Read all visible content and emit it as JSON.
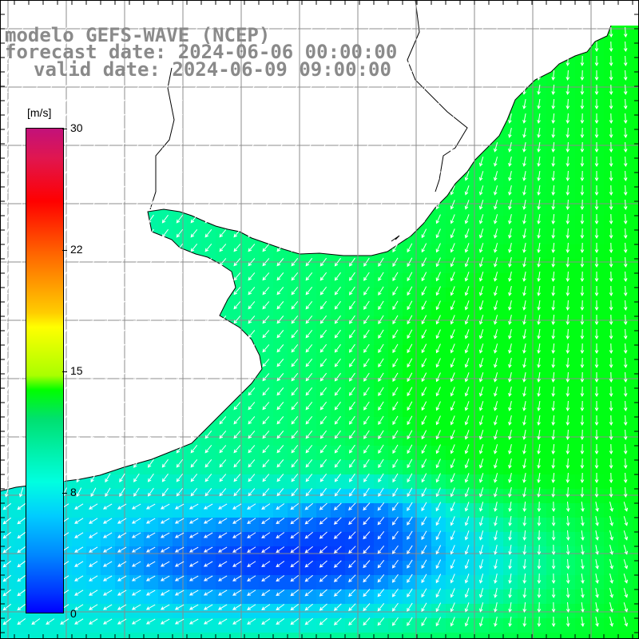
{
  "title": {
    "line1": "modelo GEFS-WAVE (NCEP)",
    "line2": "forecast date: 2024-06-06 00:00:00",
    "line3": "valid date: 2024-06-09 09:00:00"
  },
  "colorbar": {
    "unit": "[m/s]",
    "ticks": [
      "30",
      "22",
      "15",
      "8",
      "0"
    ],
    "colors": [
      "#0000ff",
      "#00ccff",
      "#00ff66",
      "#00ff00",
      "#ffff00",
      "#ff6600",
      "#ff0000",
      "#c2117a"
    ]
  },
  "map": {
    "field": "wind speed with direction arrows",
    "land_color": "#ffffff",
    "grid_color": "#8c8c8c",
    "arrow_color": "#ffffff"
  }
}
